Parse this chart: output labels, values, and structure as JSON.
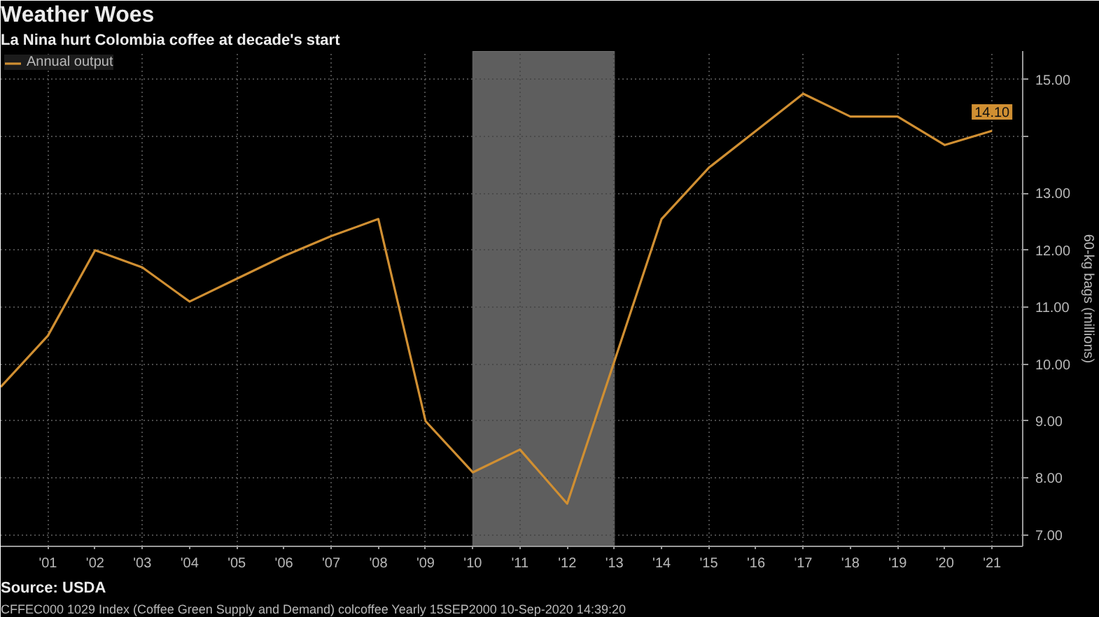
{
  "chart_data": {
    "type": "line",
    "title": "Weather Woes",
    "subtitle": "La Nina hurt Colombia coffee at decade's start",
    "ylabel": "60-kg bags (millions)",
    "x": [
      2000,
      2001,
      2002,
      2003,
      2004,
      2005,
      2006,
      2007,
      2008,
      2009,
      2010,
      2011,
      2012,
      2013,
      2014,
      2015,
      2016,
      2017,
      2018,
      2019,
      2020,
      2021
    ],
    "series": [
      {
        "name": "Annual output",
        "color": "#d08f32",
        "values": [
          9.6,
          10.5,
          12.0,
          11.7,
          11.1,
          11.5,
          11.9,
          12.25,
          12.55,
          9.0,
          8.1,
          8.5,
          7.55,
          10.05,
          12.55,
          13.45,
          14.1,
          14.75,
          14.35,
          14.35,
          13.85,
          14.1
        ],
        "value_labels": [
          null,
          null,
          null,
          null,
          null,
          null,
          null,
          null,
          null,
          null,
          null,
          null,
          null,
          null,
          null,
          null,
          null,
          null,
          null,
          null,
          null,
          "14.10"
        ]
      }
    ],
    "xlim": [
      2000,
      2021.65
    ],
    "xticks": [
      {
        "value": 2001,
        "label": "'01"
      },
      {
        "value": 2002,
        "label": "'02"
      },
      {
        "value": 2003,
        "label": "'03"
      },
      {
        "value": 2004,
        "label": "'04"
      },
      {
        "value": 2005,
        "label": "'05"
      },
      {
        "value": 2006,
        "label": "'06"
      },
      {
        "value": 2007,
        "label": "'07"
      },
      {
        "value": 2008,
        "label": "'08"
      },
      {
        "value": 2009,
        "label": "'09"
      },
      {
        "value": 2010,
        "label": "'10"
      },
      {
        "value": 2011,
        "label": "'11"
      },
      {
        "value": 2012,
        "label": "'12"
      },
      {
        "value": 2013,
        "label": "'13"
      },
      {
        "value": 2014,
        "label": "'14"
      },
      {
        "value": 2015,
        "label": "'15"
      },
      {
        "value": 2016,
        "label": "'16"
      },
      {
        "value": 2017,
        "label": "'17"
      },
      {
        "value": 2018,
        "label": "'18"
      },
      {
        "value": 2019,
        "label": "'19"
      },
      {
        "value": 2020,
        "label": "'20"
      },
      {
        "value": 2021,
        "label": "'21"
      }
    ],
    "ylim": [
      6.8,
      15.5
    ],
    "yticks": [
      {
        "value": 7,
        "label": "7.00"
      },
      {
        "value": 8,
        "label": "8.00"
      },
      {
        "value": 9,
        "label": "9.00"
      },
      {
        "value": 10,
        "label": "10.00"
      },
      {
        "value": 11,
        "label": "11.00"
      },
      {
        "value": 12,
        "label": "12.00"
      },
      {
        "value": 13,
        "label": "13.00"
      },
      {
        "value": 14,
        "label": null
      },
      {
        "value": 15,
        "label": "15.00"
      }
    ],
    "bands": [
      {
        "axis": "x",
        "from": 2010,
        "to": 2013,
        "color": "#5e5e5e"
      }
    ],
    "grid": true,
    "legend": "top left",
    "annotations": [
      "Source: USDA",
      "CFFEC000 1029 Index (Coffee Green Supply and Demand) colcoffee  Yearly 15SEP2000  10-Sep-2020 14:39:20"
    ]
  }
}
